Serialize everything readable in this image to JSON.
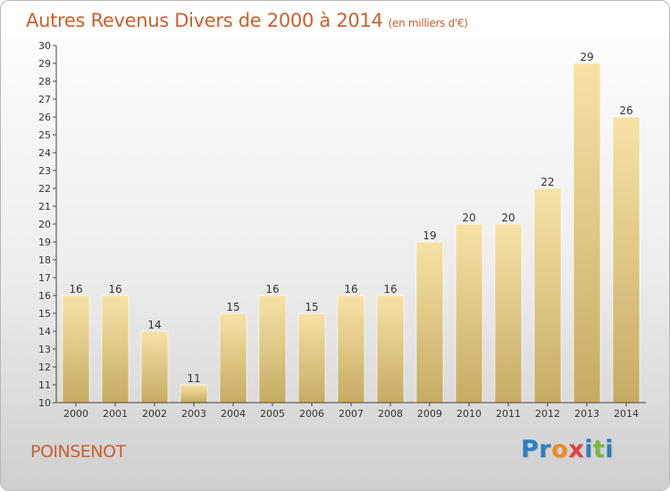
{
  "chart_data": {
    "type": "bar",
    "title": "Autres Revenus Divers de 2000 à 2014",
    "subtitle": "(en milliers d'€)",
    "xlabel": "",
    "ylabel": "",
    "categories": [
      "2000",
      "2001",
      "2002",
      "2003",
      "2004",
      "2005",
      "2006",
      "2007",
      "2008",
      "2009",
      "2010",
      "2011",
      "2012",
      "2013",
      "2014"
    ],
    "values": [
      16,
      16,
      14,
      11,
      15,
      16,
      15,
      16,
      16,
      19,
      20,
      20,
      22,
      29,
      26
    ],
    "ylim": [
      10,
      30
    ],
    "yticks": [
      10,
      11,
      12,
      13,
      14,
      15,
      16,
      17,
      18,
      19,
      20,
      21,
      22,
      23,
      24,
      25,
      26,
      27,
      28,
      29,
      30
    ],
    "grid": false,
    "bar_color_light": "#f7e2a6",
    "bar_color_dark": "#c6ab62"
  },
  "location": "POINSENOT",
  "logo": {
    "letters": [
      {
        "char": "P",
        "color": "#2c7fc1"
      },
      {
        "char": "r",
        "color": "#2c7fc1"
      },
      {
        "char": "o",
        "color": "#f08a1d"
      },
      {
        "char": "x",
        "color": "#e83e3e"
      },
      {
        "char": "i",
        "color": "#2c7fc1"
      },
      {
        "char": "t",
        "color": "#7ab93a"
      },
      {
        "char": "i",
        "color": "#2c7fc1"
      }
    ]
  },
  "colors": {
    "title": "#c9602e",
    "axis": "#444444",
    "text": "#333333"
  }
}
